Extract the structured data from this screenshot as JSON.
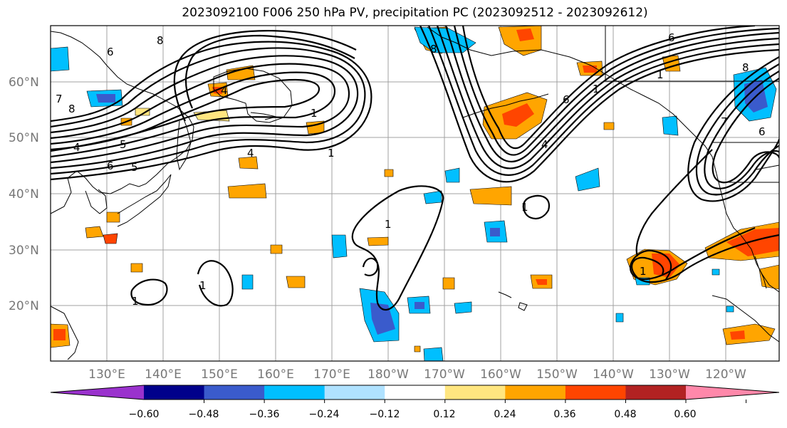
{
  "title": "2023092100 F006 250 hPa PV, precipitation PC (2023092512 - 2023092612)",
  "lat_labels": [
    "60°N",
    "50°N",
    "40°N",
    "30°N",
    "20°N"
  ],
  "lon_labels": [
    "130°E",
    "140°E",
    "150°E",
    "160°E",
    "170°E",
    "180°W",
    "170°W",
    "160°W",
    "150°W",
    "140°W",
    "130°W",
    "120°W"
  ],
  "colorbar": {
    "ticks": [
      "−0.60",
      "−0.48",
      "−0.36",
      "−0.24",
      "−0.12",
      "0.12",
      "0.24",
      "0.36",
      "0.48",
      "0.60"
    ],
    "colors": [
      "#9a32cd",
      "#00008b",
      "#3a5bcc",
      "#00bfff",
      "#b0e2ff",
      "#ffffff",
      "#ffe680",
      "#ffa500",
      "#ff4500",
      "#b22222",
      "#ff88aa"
    ]
  },
  "contour_labels": [
    "8",
    "6",
    "7",
    "8",
    "4",
    "5",
    "6",
    "5",
    "4",
    "1",
    "4",
    "1",
    "8",
    "6",
    "1",
    "4",
    "1",
    "8",
    "6",
    "7",
    "6",
    "1",
    "1",
    "1",
    "1",
    "1"
  ]
}
